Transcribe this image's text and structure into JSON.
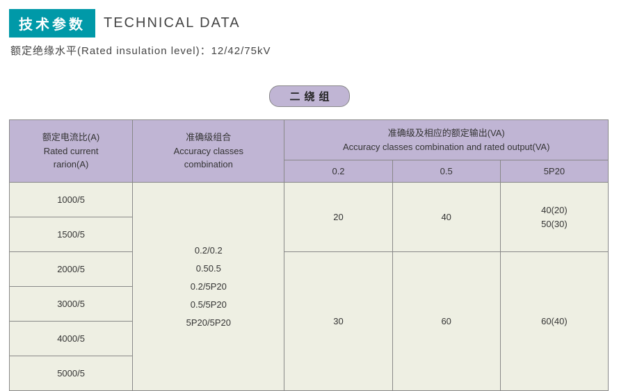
{
  "header": {
    "badge_cn": "技术参数",
    "title_en": "TECHNICAL DATA",
    "subtitle": "额定绝缘水平(Rated insulation level)：12/42/75kV"
  },
  "section_label": "二绕组",
  "table": {
    "headers": {
      "ratio_cn": "额定电流比(A)",
      "ratio_en1": "Rated current",
      "ratio_en2": "rarion(A)",
      "acc_cn": "准确级组合",
      "acc_en1": "Accuracy classes",
      "acc_en2": "combination",
      "out_cn": "准确级及相应的额定输出(VA)",
      "out_en": "Accuracy classes combination and rated output(VA)",
      "c1": "0.2",
      "c2": "0.5",
      "c3": "5P20"
    },
    "ratios": [
      "1000/5",
      "1500/5",
      "2000/5",
      "3000/5",
      "4000/5",
      "5000/5"
    ],
    "accuracy_combo": "0.2/0.2\n0.50.5\n0.2/5P20\n0.5/5P20\n5P20/5P20",
    "body": {
      "r1c1": "20",
      "r1c2": "40",
      "r1c3": "40(20)\n50(30)",
      "r2c1": "30",
      "r2c2": "60",
      "r2c3": "60(40)"
    }
  },
  "colors": {
    "badge_bg": "#0099a8",
    "header_bg": "#c0b5d4",
    "body_bg": "#eeefe3",
    "border": "#888888"
  }
}
